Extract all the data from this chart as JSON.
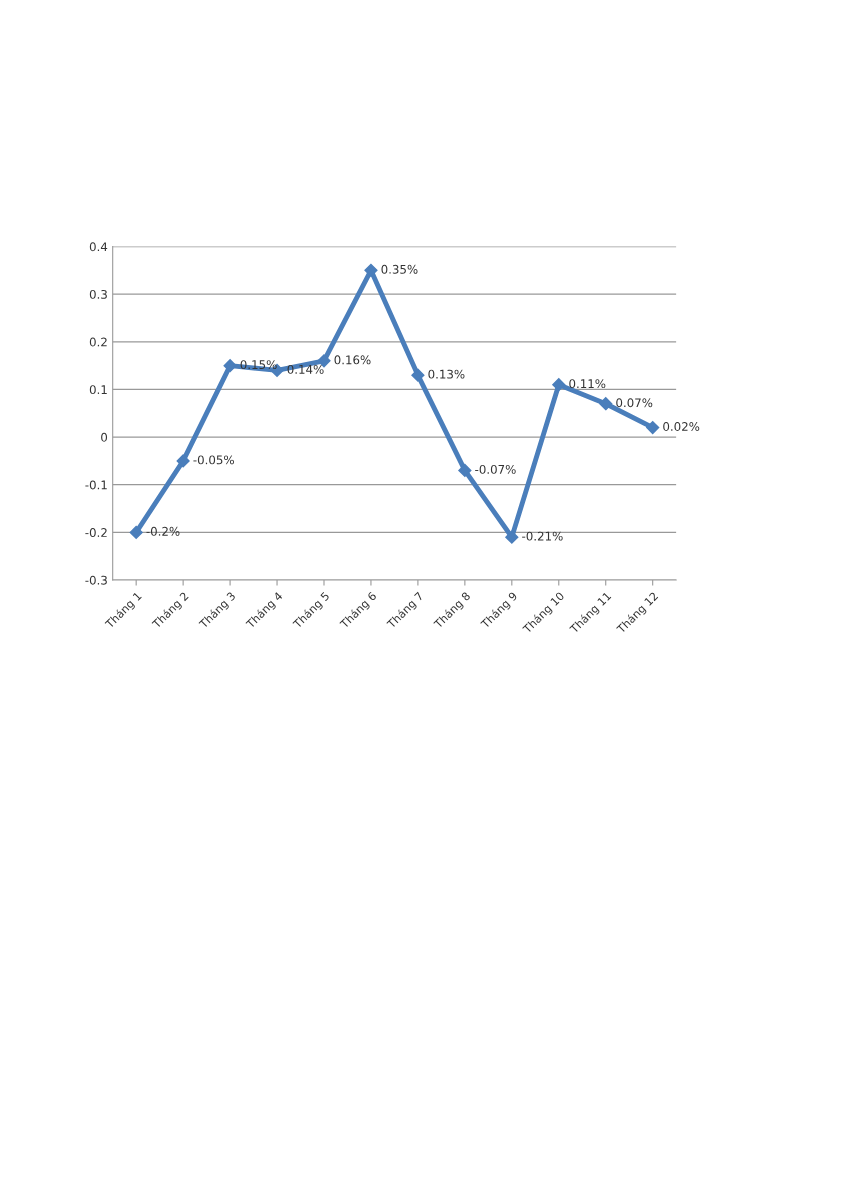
{
  "chart_data": {
    "type": "line",
    "categories": [
      "Tháng 1",
      "Tháng 2",
      "Tháng 3",
      "Tháng 4",
      "Tháng 5",
      "Tháng 6",
      "Tháng 7",
      "Tháng 8",
      "Tháng 9",
      "Tháng 10",
      "Tháng 11",
      "Tháng 12"
    ],
    "series": [
      {
        "color": "#4a7ebb",
        "values": [
          -0.2,
          -0.05,
          0.15,
          0.14,
          0.16,
          0.35,
          0.13,
          -0.07,
          -0.21,
          0.11,
          0.07,
          0.02
        ],
        "value_labels": [
          "-0.2%",
          "-0.05%",
          "0.15%",
          "0.14%",
          "0.16%",
          "0.35%",
          "0.13%",
          "-0.07%",
          "-0.21%",
          "0.11%",
          "0.07%",
          "0.02%"
        ]
      }
    ],
    "ylim": [
      -0.3,
      0.4
    ],
    "yticks": [
      -0.3,
      -0.2,
      -0.1,
      0,
      0.1,
      0.2,
      0.3,
      0.4
    ],
    "grid": "y",
    "legend": false,
    "marker": "diamond",
    "line_style": "solid"
  }
}
